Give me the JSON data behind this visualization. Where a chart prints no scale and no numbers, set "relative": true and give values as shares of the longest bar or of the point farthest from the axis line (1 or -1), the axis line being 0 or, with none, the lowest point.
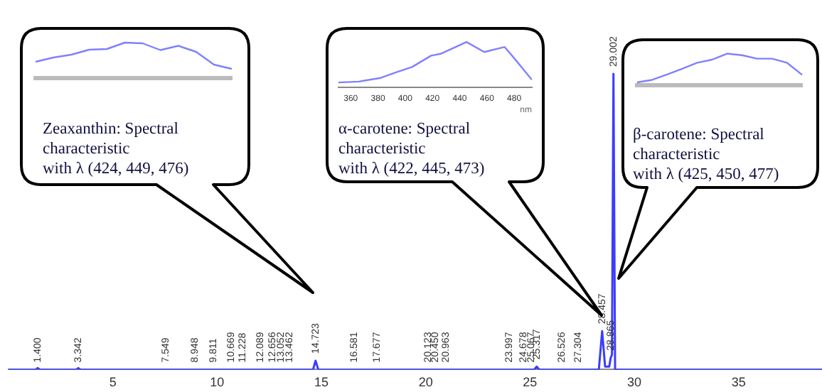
{
  "chart_data": [
    {
      "type": "line",
      "relative": true,
      "xlim": [
        0,
        39
      ],
      "xticks": [
        5,
        10,
        15,
        20,
        25,
        30,
        35
      ],
      "x": [
        0,
        1.3,
        1.4,
        1.5,
        3.25,
        3.34,
        3.45,
        14.6,
        14.72,
        14.85,
        25.2,
        25.32,
        25.45,
        28.3,
        28.46,
        28.6,
        28.8,
        28.87,
        28.93,
        29.002,
        29.08,
        39
      ],
      "series": [
        {
          "color": "#3c3cff",
          "values": [
            0,
            0,
            0.005,
            0,
            0,
            0.005,
            0,
            0,
            0.03,
            0,
            0,
            0.01,
            0,
            0,
            0.13,
            0.01,
            0.01,
            0.04,
            0.05,
            1,
            0,
            0
          ]
        }
      ],
      "annotations": [
        {
          "text": "1.400",
          "x": 1.4,
          "y": 0
        },
        {
          "text": "3.342",
          "x": 3.342,
          "y": 0
        },
        {
          "text": "7.549",
          "x": 7.549,
          "y": 0
        },
        {
          "text": "8.948",
          "x": 8.948,
          "y": 0
        },
        {
          "text": "9.811",
          "x": 9.811,
          "y": 0
        },
        {
          "text": "10.669",
          "x": 10.669,
          "y": 0
        },
        {
          "text": "11.228",
          "x": 11.228,
          "y": 0
        },
        {
          "text": "12.089",
          "x": 12.089,
          "y": 0
        },
        {
          "text": "12.656",
          "x": 12.656,
          "y": 0
        },
        {
          "text": "13.052",
          "x": 13.052,
          "y": 0
        },
        {
          "text": "13.462",
          "x": 13.462,
          "y": 0
        },
        {
          "text": "14.723",
          "x": 14.723,
          "y": 0.03
        },
        {
          "text": "16.581",
          "x": 16.581,
          "y": 0
        },
        {
          "text": "17.677",
          "x": 17.677,
          "y": 0
        },
        {
          "text": "20.123",
          "x": 20.123,
          "y": 0
        },
        {
          "text": "20.450",
          "x": 20.45,
          "y": 0
        },
        {
          "text": "20.963",
          "x": 20.963,
          "y": 0
        },
        {
          "text": "23.997",
          "x": 23.997,
          "y": 0
        },
        {
          "text": "24.678",
          "x": 24.678,
          "y": 0
        },
        {
          "text": "25.067",
          "x": 25.067,
          "y": 0
        },
        {
          "text": "25.317",
          "x": 25.317,
          "y": 0.01
        },
        {
          "text": "26.526",
          "x": 26.526,
          "y": 0
        },
        {
          "text": "27.304",
          "x": 27.304,
          "y": 0
        },
        {
          "text": "28.457",
          "x": 28.457,
          "y": 0.13
        },
        {
          "text": "28.865",
          "x": 28.865,
          "y": 0.04
        },
        {
          "text": "29.002",
          "x": 29.002,
          "y": 1
        }
      ]
    },
    {
      "type": "line",
      "relative": true,
      "categories": [
        null,
        null,
        null,
        null,
        null,
        null,
        null,
        null,
        null,
        null,
        null,
        null
      ],
      "series": [
        {
          "color": "#8080ff",
          "values": [
            0.46,
            0.58,
            0.66,
            0.8,
            0.82,
            1,
            0.98,
            0.79,
            0.91,
            0.74,
            0.38,
            0.26
          ]
        }
      ],
      "annotations": [
        "Zeaxanthin: Spectral\ncharacteristic\nwith λ (424, 449, 476)"
      ]
    },
    {
      "type": "line",
      "relative": true,
      "xlim": [
        351,
        493
      ],
      "xticks": [
        360,
        380,
        400,
        420,
        440,
        460,
        480
      ],
      "xlabel": "nm",
      "x": [
        351,
        366,
        382,
        394,
        405,
        419,
        426,
        445,
        458,
        473,
        479,
        493
      ],
      "series": [
        {
          "color": "#8080ff",
          "values": [
            0.11,
            0.13,
            0.21,
            0.34,
            0.45,
            0.7,
            0.74,
            1,
            0.78,
            0.89,
            0.68,
            0.17
          ]
        }
      ],
      "annotations": [
        "α-carotene: Spectral\ncharacteristic\nwith λ (422, 445, 473)"
      ]
    },
    {
      "type": "line",
      "relative": true,
      "categories": [
        null,
        null,
        null,
        null,
        null,
        null,
        null,
        null,
        null,
        null,
        null,
        null
      ],
      "series": [
        {
          "color": "#8080ff",
          "values": [
            0.09,
            0.17,
            0.34,
            0.52,
            0.71,
            0.81,
            1,
            0.95,
            0.84,
            0.84,
            0.71,
            0.33
          ]
        }
      ],
      "annotations": [
        "β-carotene: Spectral\ncharacteristic\nwith λ (425, 450, 477)"
      ]
    }
  ]
}
